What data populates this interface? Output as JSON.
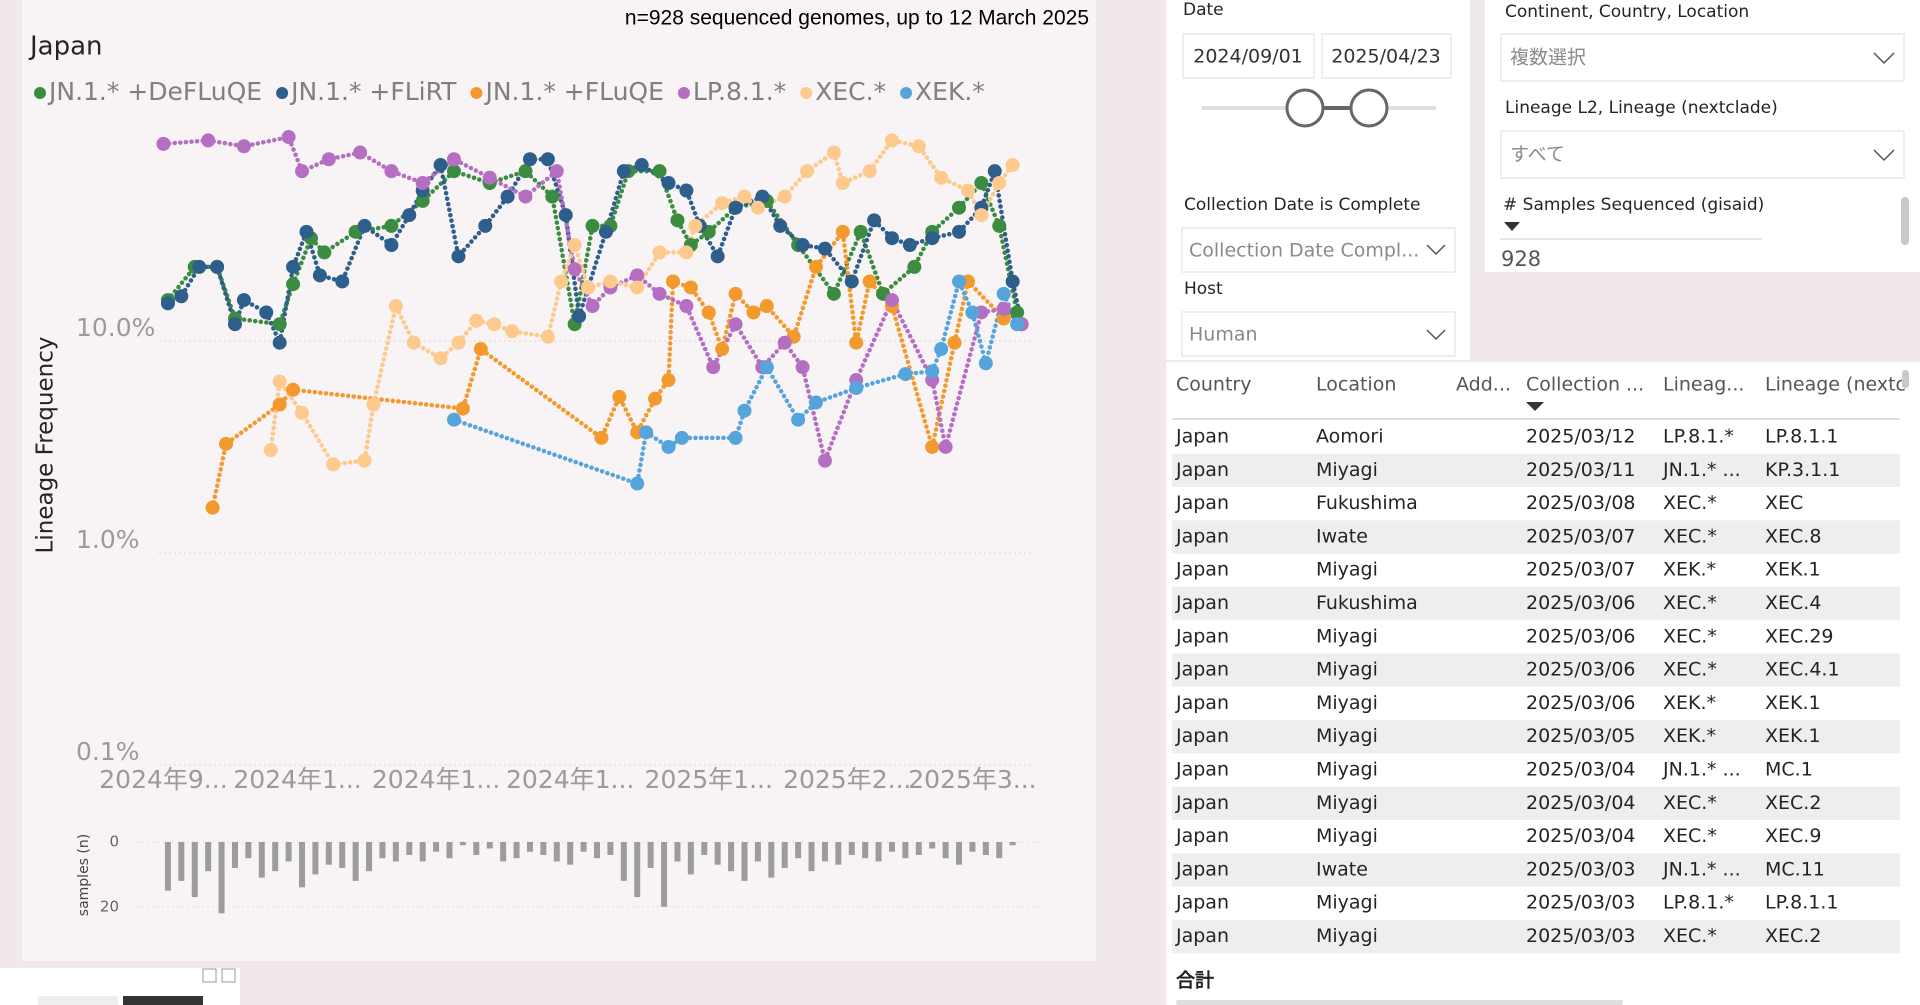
{
  "chart_data": [
    {
      "type": "line",
      "title": "n=928 sequenced genomes, up to 12 March 2025",
      "subtitle": "Japan",
      "y_label": "Lineage Frequency",
      "log": true,
      "grid": true,
      "legend": "top-left",
      "xlim": [
        "2024/08/31",
        "2025/03/15"
      ],
      "xticks": [
        {
          "value": "2024/09/01",
          "label": "2024年9..."
        },
        {
          "value": "2024/10/01",
          "label": "2024年1..."
        },
        {
          "value": "2024/11/01",
          "label": "2024年1..."
        },
        {
          "value": "2024/12/01",
          "label": "2024年1..."
        },
        {
          "value": "2025/01/01",
          "label": "2025年1..."
        },
        {
          "value": "2025/02/01",
          "label": "2025年2..."
        },
        {
          "value": "2025/03/01",
          "label": "2025年3..."
        }
      ],
      "ylim": [
        0.1,
        100
      ],
      "yticks": [
        {
          "value": 0.1,
          "label": "0.1%"
        },
        {
          "value": 1,
          "label": "1.0%"
        },
        {
          "value": 10,
          "label": "10.0%"
        }
      ],
      "series": [
        {
          "name": "JN.1.* +DeFLuQE",
          "color": "#3b8c41",
          "x": [
            "2024/09/02",
            "2024/09/08",
            "2024/09/13",
            "2024/09/17",
            "2024/09/27",
            "2024/09/30",
            "2024/10/04",
            "2024/10/07",
            "2024/10/14",
            "2024/10/22",
            "2024/10/29",
            "2024/11/05",
            "2024/11/13",
            "2024/11/21",
            "2024/11/27",
            "2024/12/02",
            "2024/12/06",
            "2024/12/10",
            "2024/12/14",
            "2024/12/21",
            "2024/12/25",
            "2024/12/28",
            "2025/01/01",
            "2025/01/07",
            "2025/01/14",
            "2025/01/21",
            "2025/01/29",
            "2025/02/04",
            "2025/02/09",
            "2025/02/16",
            "2025/02/20",
            "2025/02/26",
            "2025/03/03",
            "2025/03/07",
            "2025/03/11"
          ],
          "values": [
            14.3,
            20.5,
            20.5,
            11.7,
            11,
            17,
            28,
            24,
            30,
            32,
            42,
            58,
            51,
            58,
            44,
            11,
            32,
            32,
            58,
            58,
            34,
            26,
            30,
            39,
            42,
            26,
            15.3,
            30,
            15.3,
            20.5,
            30,
            39,
            51,
            32,
            12.5
          ]
        },
        {
          "name": "JN.1.* +FLiRT",
          "color": "#2e5e8c",
          "x": [
            "2024/09/02",
            "2024/09/05",
            "2024/09/09",
            "2024/09/13",
            "2024/09/17",
            "2024/09/19",
            "2024/09/24",
            "2024/09/27",
            "2024/09/30",
            "2024/10/03",
            "2024/10/06",
            "2024/10/11",
            "2024/10/16",
            "2024/10/22",
            "2024/10/26",
            "2024/10/29",
            "2024/11/02",
            "2024/11/06",
            "2024/11/12",
            "2024/11/17",
            "2024/11/22",
            "2024/11/26",
            "2024/11/30",
            "2024/12/03",
            "2024/12/09",
            "2024/12/13",
            "2024/12/17",
            "2024/12/23",
            "2024/12/27",
            "2024/12/30",
            "2025/01/03",
            "2025/01/07",
            "2025/01/13",
            "2025/01/17",
            "2025/01/22",
            "2025/01/27",
            "2025/02/02",
            "2025/02/07",
            "2025/02/11",
            "2025/02/15",
            "2025/02/20",
            "2025/02/26",
            "2025/03/03",
            "2025/03/06",
            "2025/03/10",
            "2025/03/12"
          ],
          "values": [
            13.8,
            14.9,
            20.5,
            20.5,
            11,
            14.3,
            12.5,
            9,
            20.5,
            30,
            18.7,
            17.5,
            32,
            26,
            36,
            47,
            62,
            23,
            32,
            44,
            66,
            66,
            36,
            12,
            30,
            58,
            62,
            51,
            47,
            32,
            23,
            39,
            44,
            32,
            26,
            25,
            17.5,
            34,
            28,
            26,
            28,
            30,
            39,
            58,
            17.5,
            11
          ]
        },
        {
          "name": "JN.1.* +FLuQE",
          "color": "#f39a2f",
          "x": [
            "2024/09/12",
            "2024/09/15",
            "2024/09/27",
            "2024/09/30",
            "2024/11/07",
            "2024/11/11",
            "2024/12/08",
            "2024/12/12",
            "2024/12/16",
            "2024/12/20",
            "2024/12/23",
            "2024/12/24",
            "2024/12/28",
            "2025/01/01",
            "2025/01/04",
            "2025/01/07",
            "2025/01/11",
            "2025/01/14",
            "2025/01/20",
            "2025/01/25",
            "2025/01/31",
            "2025/02/03",
            "2025/02/06",
            "2025/02/11",
            "2025/02/20",
            "2025/02/25",
            "2025/02/28",
            "2025/03/08",
            "2025/03/12"
          ],
          "values": [
            1.5,
            3,
            4.6,
            5.4,
            4.4,
            8.4,
            3.2,
            5,
            3.4,
            4.9,
            6,
            17.5,
            16.4,
            12.5,
            8.4,
            15.3,
            12.5,
            13.4,
            9.6,
            20.5,
            30,
            9,
            17.5,
            13.4,
            2.9,
            9,
            17.5,
            11.7,
            11
          ]
        },
        {
          "name": "LP.8.1.*",
          "color": "#b46fc3",
          "x": [
            "2024/09/01",
            "2024/09/11",
            "2024/09/19",
            "2024/09/29",
            "2024/10/02",
            "2024/10/08",
            "2024/10/15",
            "2024/10/22",
            "2024/10/29",
            "2024/11/05",
            "2024/11/13",
            "2024/11/21",
            "2024/11/28",
            "2024/12/02",
            "2024/12/06",
            "2024/12/10",
            "2024/12/16",
            "2024/12/21",
            "2024/12/27",
            "2025/01/02",
            "2025/01/07",
            "2025/01/13",
            "2025/01/18",
            "2025/01/22",
            "2025/01/27",
            "2025/02/03",
            "2025/02/11",
            "2025/02/20",
            "2025/02/23",
            "2025/03/03",
            "2025/03/08",
            "2025/03/12"
          ],
          "values": [
            78,
            81,
            76,
            84,
            58,
            66,
            71,
            58,
            51,
            66,
            54,
            44,
            58,
            20,
            13.4,
            16.4,
            18.7,
            15.3,
            13.4,
            6.9,
            11,
            6.9,
            9,
            6.9,
            2.5,
            6,
            14.3,
            6,
            2.9,
            12.5,
            13,
            11
          ]
        },
        {
          "name": "XEC.*",
          "color": "#fdc98d",
          "x": [
            "2024/09/25",
            "2024/09/27",
            "2024/10/02",
            "2024/10/09",
            "2024/10/16",
            "2024/10/18",
            "2024/10/23",
            "2024/10/27",
            "2024/11/02",
            "2024/11/06",
            "2024/11/10",
            "2024/11/14",
            "2024/11/18",
            "2024/11/26",
            "2024/11/29",
            "2024/12/02",
            "2024/12/05",
            "2024/12/10",
            "2024/12/16",
            "2024/12/21",
            "2024/12/27",
            "2024/12/29",
            "2025/01/04",
            "2025/01/09",
            "2025/01/12",
            "2025/01/18",
            "2025/01/23",
            "2025/01/29",
            "2025/01/31",
            "2025/02/06",
            "2025/02/11",
            "2025/02/17",
            "2025/02/22",
            "2025/02/28",
            "2025/03/03",
            "2025/03/07",
            "2025/03/10"
          ],
          "values": [
            2.8,
            5.9,
            4.2,
            2.4,
            2.5,
            4.6,
            13.4,
            9,
            7.6,
            9,
            11.4,
            11,
            10.2,
            9.6,
            17.5,
            26,
            16.4,
            17.5,
            16.4,
            24,
            24,
            32,
            41,
            44,
            39,
            44,
            58,
            71,
            51,
            58,
            81,
            76,
            54,
            47,
            36,
            51,
            62
          ]
        },
        {
          "name": "XEK.*",
          "color": "#55a5dc",
          "x": [
            "2024/11/05",
            "2024/12/16",
            "2024/12/18",
            "2024/12/23",
            "2024/12/26",
            "2025/01/07",
            "2025/01/09",
            "2025/01/14",
            "2025/01/21",
            "2025/01/25",
            "2025/02/03",
            "2025/02/14",
            "2025/02/20",
            "2025/02/22",
            "2025/02/26",
            "2025/03/01",
            "2025/03/04",
            "2025/03/08",
            "2025/03/11"
          ],
          "values": [
            3.9,
            1.95,
            3.4,
            2.9,
            3.2,
            3.2,
            4.3,
            6.9,
            3.9,
            4.7,
            5.5,
            6.4,
            6.6,
            8.4,
            17.5,
            12.5,
            7.2,
            15.3,
            11
          ]
        }
      ]
    },
    {
      "type": "bar",
      "y_label": "samples (n)",
      "color": "#9c9c9c",
      "y_inverted": true,
      "ylim": [
        0,
        25
      ],
      "yticks": [
        0,
        20
      ],
      "x": [
        "2024/09/02",
        "2024/09/05",
        "2024/09/08",
        "2024/09/11",
        "2024/09/14",
        "2024/09/17",
        "2024/09/20",
        "2024/09/23",
        "2024/09/26",
        "2024/09/29",
        "2024/10/02",
        "2024/10/05",
        "2024/10/08",
        "2024/10/11",
        "2024/10/14",
        "2024/10/17",
        "2024/10/20",
        "2024/10/23",
        "2024/10/26",
        "2024/10/29",
        "2024/11/01",
        "2024/11/04",
        "2024/11/07",
        "2024/11/10",
        "2024/11/13",
        "2024/11/16",
        "2024/11/19",
        "2024/11/22",
        "2024/11/25",
        "2024/11/28",
        "2024/12/01",
        "2024/12/04",
        "2024/12/07",
        "2024/12/10",
        "2024/12/13",
        "2024/12/16",
        "2024/12/19",
        "2024/12/22",
        "2024/12/25",
        "2024/12/28",
        "2024/12/31",
        "2025/01/03",
        "2025/01/06",
        "2025/01/09",
        "2025/01/12",
        "2025/01/15",
        "2025/01/18",
        "2025/01/21",
        "2025/01/24",
        "2025/01/27",
        "2025/01/30",
        "2025/02/02",
        "2025/02/05",
        "2025/02/08",
        "2025/02/11",
        "2025/02/14",
        "2025/02/17",
        "2025/02/20",
        "2025/02/23",
        "2025/02/26",
        "2025/03/01",
        "2025/03/04",
        "2025/03/07",
        "2025/03/10"
      ],
      "values": [
        15,
        12,
        17,
        9,
        22,
        8,
        5,
        11,
        9,
        6,
        14,
        10,
        7,
        8,
        12,
        9,
        5,
        6,
        4,
        6,
        3,
        5,
        1,
        4,
        2,
        6,
        5,
        3,
        4,
        6,
        7,
        3,
        5,
        4,
        12,
        17,
        8,
        20,
        6,
        10,
        4,
        7,
        9,
        12,
        6,
        11,
        8,
        5,
        9,
        6,
        7,
        4,
        5,
        6,
        3,
        5,
        4,
        2,
        5,
        7,
        3,
        4,
        5,
        1
      ]
    }
  ],
  "filters": {
    "date": {
      "label": "Date",
      "start": "2024/09/01",
      "end": "2025/04/23"
    },
    "location": {
      "label": "Continent, Country, Location",
      "value": "複数選択"
    },
    "lineage": {
      "label": "Lineage L2, Lineage (nextclade)",
      "value": "すべて"
    },
    "complete": {
      "label": "Collection Date is Complete",
      "value": "Collection Date Compl..."
    },
    "host": {
      "label": "Host",
      "value": "Human"
    }
  },
  "samples_card": {
    "label": "# Samples Sequenced (gisaid)",
    "value": 928
  },
  "table": {
    "headers": [
      "Country",
      "Location",
      "Add...",
      "Collection ...",
      "Lineag...",
      "Lineage (nextc"
    ],
    "rows": [
      [
        "Japan",
        "Aomori",
        "2025/03/12",
        "LP.8.1.*",
        "LP.8.1.1"
      ],
      [
        "Japan",
        "Miyagi",
        "2025/03/11",
        "JN.1.* ...",
        "KP.3.1.1"
      ],
      [
        "Japan",
        "Fukushima",
        "2025/03/08",
        "XEC.*",
        "XEC"
      ],
      [
        "Japan",
        "Iwate",
        "2025/03/07",
        "XEC.*",
        "XEC.8"
      ],
      [
        "Japan",
        "Miyagi",
        "2025/03/07",
        "XEK.*",
        "XEK.1"
      ],
      [
        "Japan",
        "Fukushima",
        "2025/03/06",
        "XEC.*",
        "XEC.4"
      ],
      [
        "Japan",
        "Miyagi",
        "2025/03/06",
        "XEC.*",
        "XEC.29"
      ],
      [
        "Japan",
        "Miyagi",
        "2025/03/06",
        "XEC.*",
        "XEC.4.1"
      ],
      [
        "Japan",
        "Miyagi",
        "2025/03/06",
        "XEK.*",
        "XEK.1"
      ],
      [
        "Japan",
        "Miyagi",
        "2025/03/05",
        "XEK.*",
        "XEK.1"
      ],
      [
        "Japan",
        "Miyagi",
        "2025/03/04",
        "JN.1.* ...",
        "MC.1"
      ],
      [
        "Japan",
        "Miyagi",
        "2025/03/04",
        "XEC.*",
        "XEC.2"
      ],
      [
        "Japan",
        "Miyagi",
        "2025/03/04",
        "XEC.*",
        "XEC.9"
      ],
      [
        "Japan",
        "Iwate",
        "2025/03/03",
        "JN.1.* ...",
        "MC.11"
      ],
      [
        "Japan",
        "Miyagi",
        "2025/03/03",
        "LP.8.1.*",
        "LP.8.1.1"
      ],
      [
        "Japan",
        "Miyagi",
        "2025/03/03",
        "XEC.*",
        "XEC.2"
      ]
    ],
    "total_label": "合計"
  }
}
